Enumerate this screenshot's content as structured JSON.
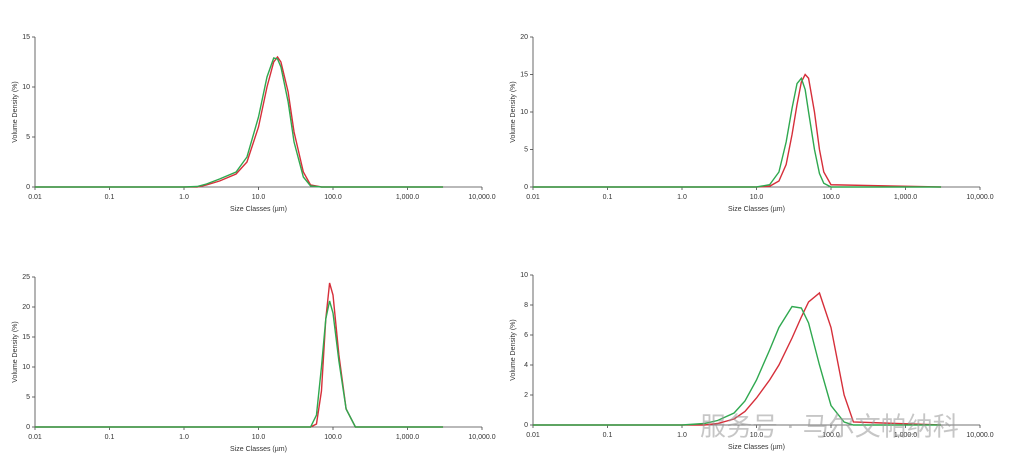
{
  "chart_data": [
    {
      "type": "line",
      "xlabel": "Size Classes (µm)",
      "ylabel": "Volume Density (%)",
      "xscale": "log",
      "xlim": [
        0.01,
        10000
      ],
      "xticks": [
        0.01,
        0.1,
        {
          "value": 1,
          "label": "1.0"
        },
        {
          "value": 10,
          "label": "10.0"
        },
        {
          "value": 100,
          "label": "100.0"
        },
        {
          "value": 1000,
          "label": "1,000.0"
        },
        {
          "value": 10000,
          "label": "10,000.0"
        }
      ],
      "ylim": [
        0,
        15
      ],
      "yticks": [
        0,
        5,
        10,
        15
      ],
      "x": [
        0.01,
        1,
        1.5,
        2,
        3,
        5,
        7,
        10,
        13,
        16,
        18,
        20,
        25,
        30,
        40,
        50,
        70,
        3000
      ],
      "series": [
        {
          "color": "#d62f3a",
          "values": [
            0,
            0,
            0,
            0.2,
            0.6,
            1.3,
            2.5,
            6,
            10,
            12.5,
            13,
            12.5,
            9.5,
            5.5,
            1.5,
            0.2,
            0,
            0
          ]
        },
        {
          "color": "#2fa84f",
          "values": [
            0,
            0,
            0.05,
            0.3,
            0.8,
            1.5,
            3,
            7,
            11,
            12.9,
            12.8,
            12,
            8.5,
            4.5,
            1,
            0.1,
            0,
            0
          ]
        }
      ]
    },
    {
      "type": "line",
      "xlabel": "Size Classes (µm)",
      "ylabel": "Volume Density (%)",
      "xscale": "log",
      "xlim": [
        0.01,
        10000
      ],
      "xticks": [
        0.01,
        0.1,
        {
          "value": 1,
          "label": "1.0"
        },
        {
          "value": 10,
          "label": "10.0"
        },
        {
          "value": 100,
          "label": "100.0"
        },
        {
          "value": 1000,
          "label": "1,000.0"
        },
        {
          "value": 10000,
          "label": "10,000.0"
        }
      ],
      "ylim": [
        0,
        20
      ],
      "yticks": [
        0,
        5,
        10,
        15,
        20
      ],
      "x": [
        0.01,
        10,
        15,
        20,
        25,
        30,
        35,
        40,
        45,
        50,
        60,
        70,
        80,
        100,
        3000
      ],
      "series": [
        {
          "color": "#d62f3a",
          "values": [
            0,
            0,
            0.1,
            0.8,
            3,
            7,
            11,
            14,
            15,
            14.5,
            10,
            5,
            2,
            0.3,
            0
          ]
        },
        {
          "color": "#2fa84f",
          "values": [
            0,
            0,
            0.3,
            2,
            6,
            10.5,
            13.8,
            14.5,
            13,
            10,
            5,
            1.8,
            0.5,
            0,
            0
          ]
        }
      ]
    },
    {
      "type": "line",
      "xlabel": "Size Classes (µm)",
      "ylabel": "Volume Density (%)",
      "xscale": "log",
      "xlim": [
        0.01,
        10000
      ],
      "xticks": [
        0.01,
        0.1,
        {
          "value": 1,
          "label": "1.0"
        },
        {
          "value": 10,
          "label": "10.0"
        },
        {
          "value": 100,
          "label": "100.0"
        },
        {
          "value": 1000,
          "label": "1,000.0"
        },
        {
          "value": 10000,
          "label": "10,000.0"
        }
      ],
      "ylim": [
        0,
        25
      ],
      "yticks": [
        0,
        5,
        10,
        15,
        20,
        25
      ],
      "x": [
        0.01,
        50,
        60,
        70,
        80,
        90,
        100,
        120,
        150,
        200,
        3000
      ],
      "series": [
        {
          "color": "#d62f3a",
          "values": [
            0,
            0,
            0.5,
            6,
            18,
            24,
            22,
            12,
            3,
            0,
            0
          ]
        },
        {
          "color": "#2fa84f",
          "values": [
            0,
            0,
            2,
            10,
            18,
            21,
            19,
            11,
            3,
            0,
            0
          ]
        }
      ]
    },
    {
      "type": "line",
      "xlabel": "Size Classes (µm)",
      "ylabel": "Volume Density (%)",
      "xscale": "log",
      "xlim": [
        0.01,
        10000
      ],
      "xticks": [
        0.01,
        0.1,
        {
          "value": 1,
          "label": "1.0"
        },
        {
          "value": 10,
          "label": "10.0"
        },
        {
          "value": 100,
          "label": "100.0"
        },
        {
          "value": 1000,
          "label": "1,000.0"
        },
        {
          "value": 10000,
          "label": "10,000.0"
        }
      ],
      "ylim": [
        0,
        10
      ],
      "yticks": [
        0,
        2,
        4,
        6,
        8,
        10
      ],
      "x": [
        0.01,
        1,
        2,
        3,
        5,
        7,
        10,
        15,
        20,
        30,
        40,
        50,
        70,
        100,
        150,
        200,
        3000
      ],
      "series": [
        {
          "color": "#d62f3a",
          "values": [
            0,
            0,
            0,
            0.1,
            0.4,
            0.9,
            1.8,
            3,
            4,
            5.8,
            7.2,
            8.2,
            8.8,
            6.5,
            2,
            0.2,
            0
          ]
        },
        {
          "color": "#2fa84f",
          "values": [
            0,
            0,
            0.1,
            0.3,
            0.8,
            1.6,
            3,
            5,
            6.5,
            7.9,
            7.8,
            6.8,
            4,
            1.3,
            0.2,
            0,
            0
          ]
        }
      ]
    }
  ],
  "watermark": "服务号 · 马尔文帕纳科"
}
